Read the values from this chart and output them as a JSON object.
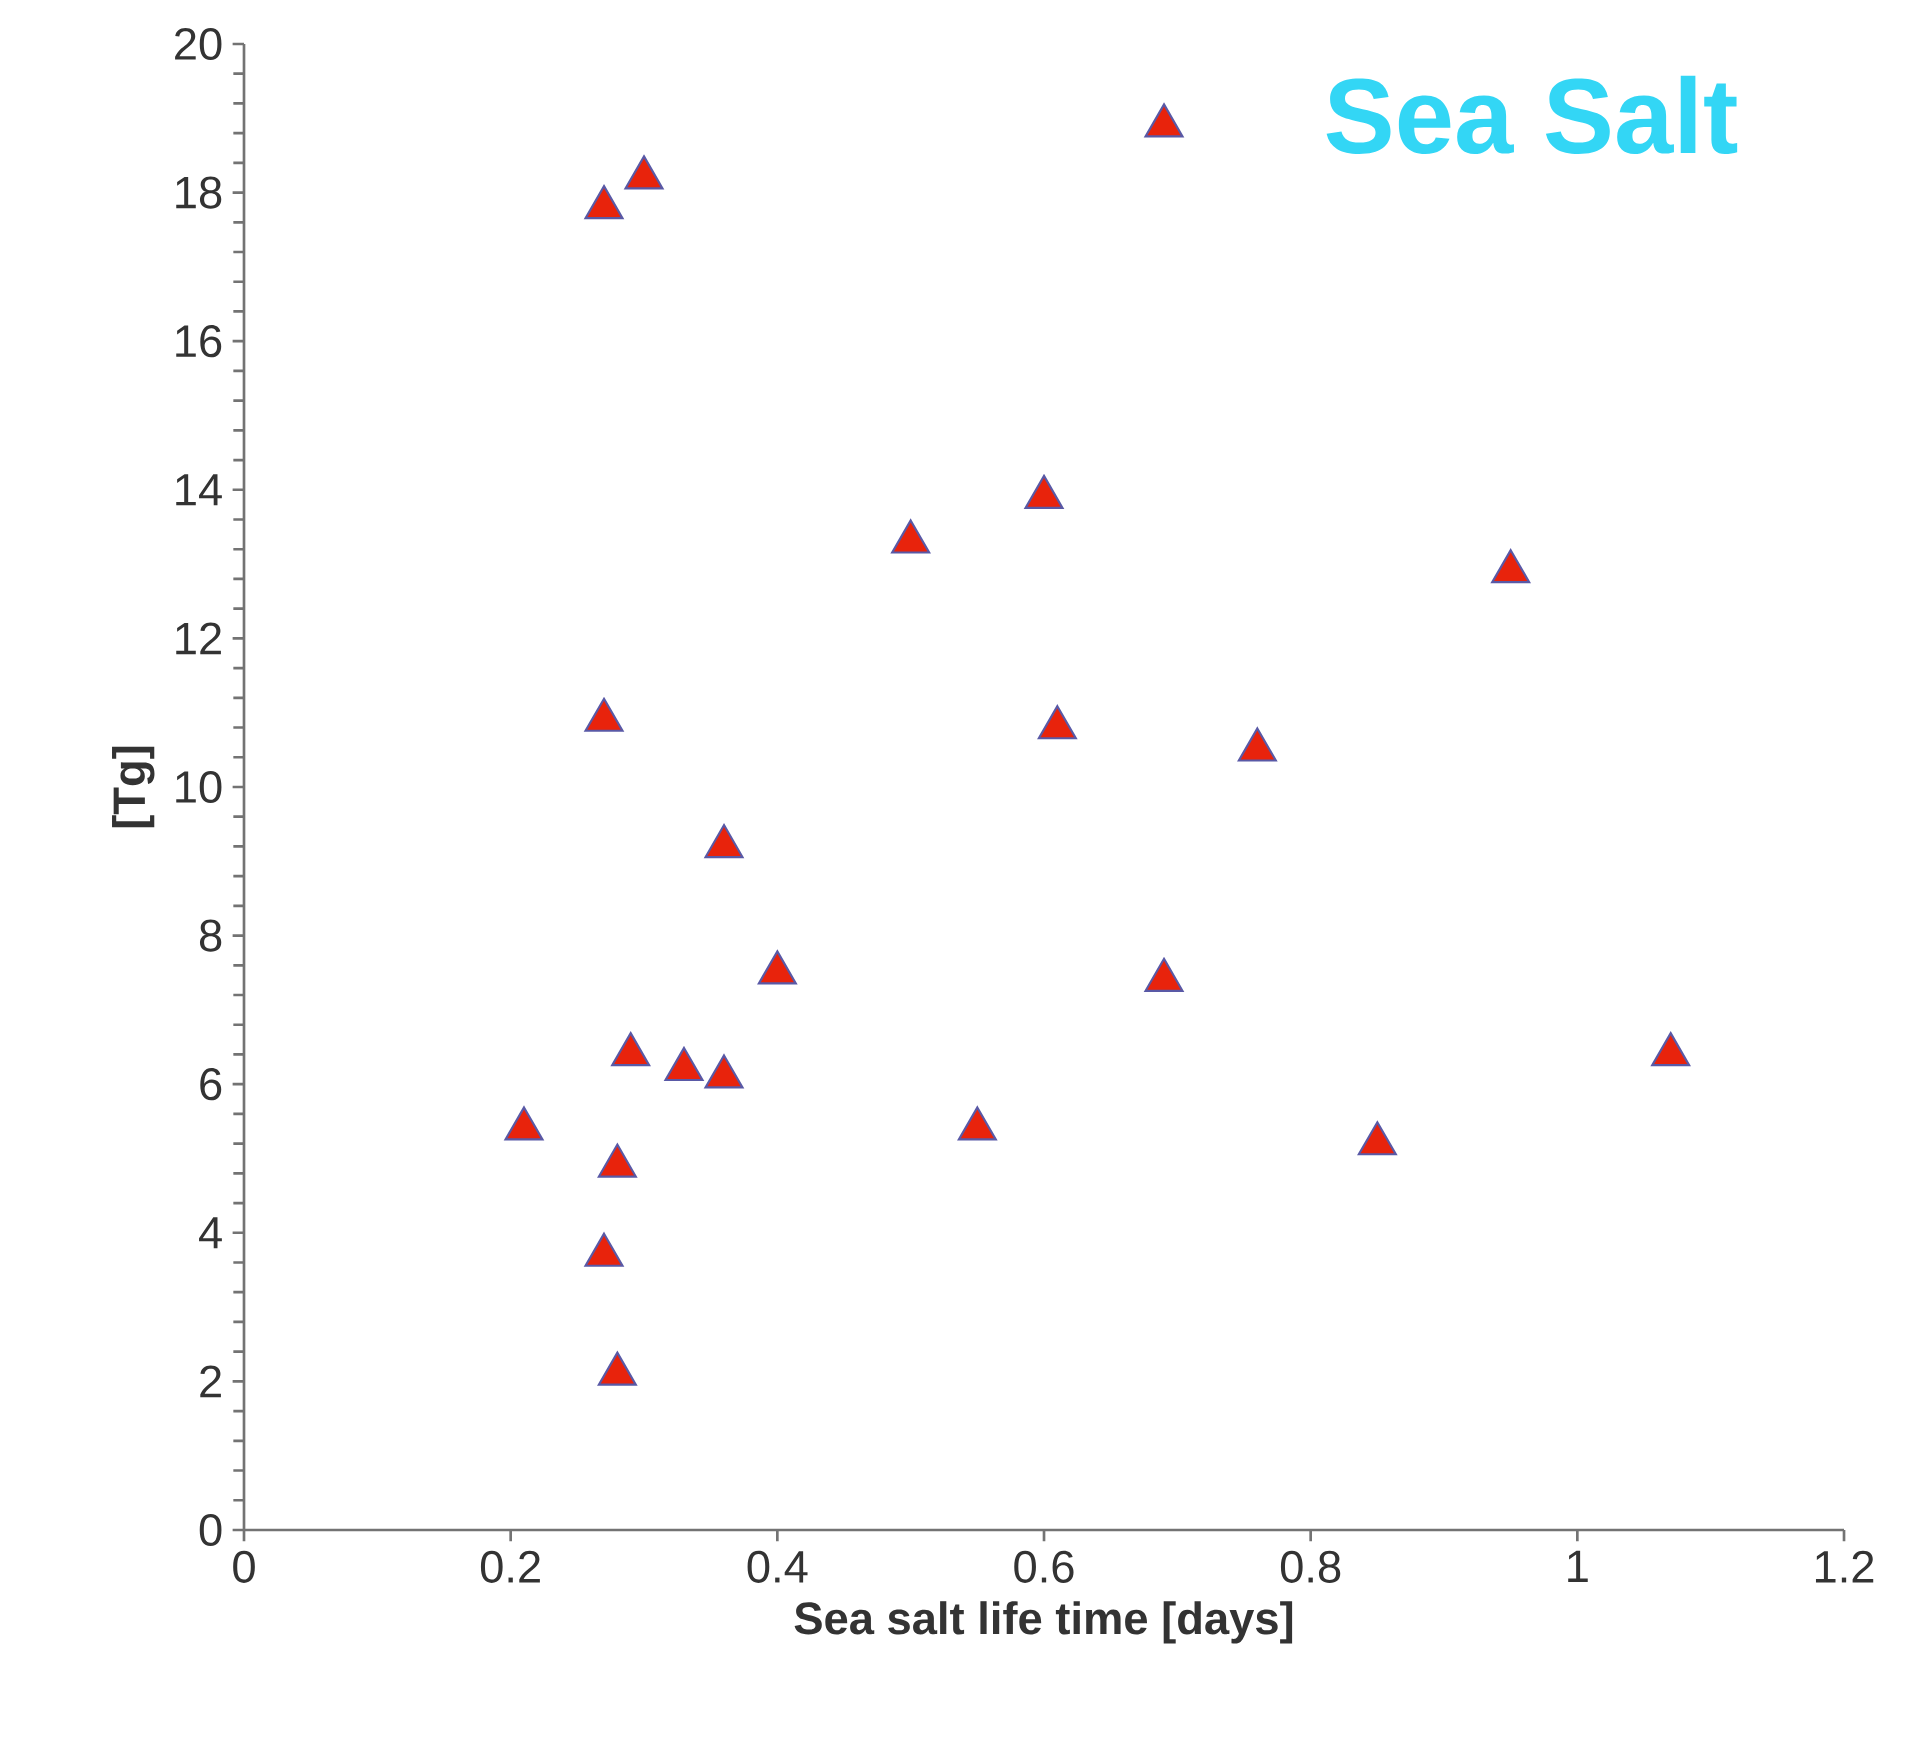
{
  "chart_data": {
    "type": "scatter",
    "xlabel": "Sea salt life time [days]",
    "ylabel": "[Tg]",
    "annotations": [
      "Sea Salt"
    ],
    "x": [
      0.27,
      0.3,
      0.69,
      0.6,
      0.5,
      0.95,
      0.27,
      0.61,
      0.76,
      0.36,
      0.4,
      0.69,
      0.29,
      0.33,
      0.36,
      1.07,
      0.21,
      0.55,
      0.85,
      0.28,
      0.27,
      0.28
    ],
    "series": [
      {
        "color": "#e8230c",
        "values": [
          17.8,
          18.2,
          18.9,
          13.9,
          13.3,
          12.9,
          10.9,
          10.8,
          10.5,
          9.2,
          7.5,
          7.4,
          6.4,
          6.2,
          6.1,
          6.4,
          5.4,
          5.4,
          5.2,
          4.9,
          3.7,
          2.1
        ]
      }
    ],
    "xlim": [
      0,
      1.2
    ],
    "ylim": [
      0,
      20
    ],
    "xticks": [
      0,
      0.2,
      0.4,
      0.6,
      0.8,
      1,
      1.2
    ],
    "yticks": [
      0,
      2,
      4,
      6,
      8,
      10,
      12,
      14,
      16,
      18,
      20
    ],
    "grid": false,
    "marker": "triangle"
  }
}
